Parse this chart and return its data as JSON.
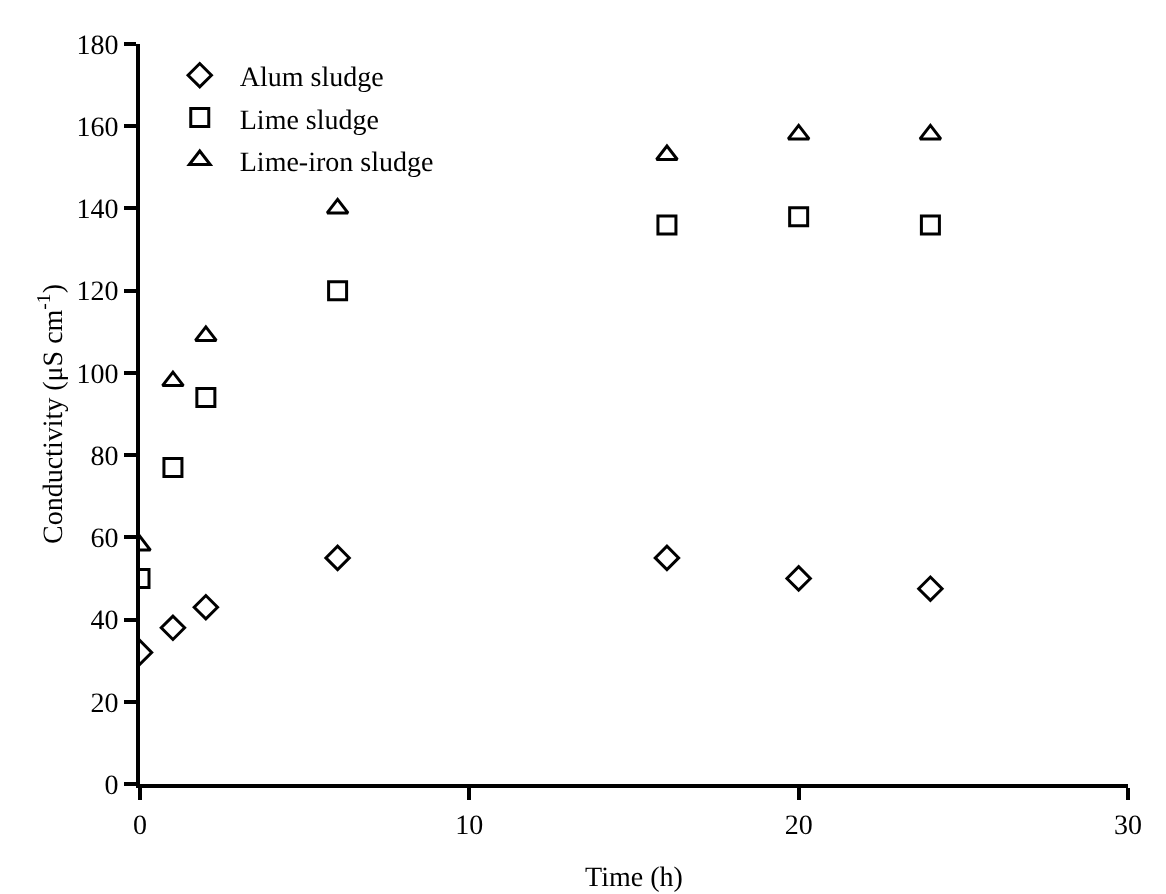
{
  "chart_data": {
    "type": "scatter",
    "xlabel": "Time (h)",
    "ylabel": "Conductivity (μS cm$^{-1}$)",
    "x": [
      0,
      1,
      2,
      6,
      16,
      20,
      24
    ],
    "series": [
      {
        "name": "Alum sludge",
        "color": "#000000",
        "marker": "diamond",
        "values": [
          32,
          38,
          43,
          55,
          55,
          50,
          47.5
        ]
      },
      {
        "name": "Lime sludge",
        "color": "#000000",
        "marker": "square",
        "values": [
          50,
          77,
          94,
          120,
          136,
          138,
          136
        ]
      },
      {
        "name": "Lime-iron sludge",
        "color": "#000000",
        "marker": "triangle",
        "values": [
          58,
          98,
          109,
          140,
          153,
          158,
          158
        ]
      }
    ],
    "xlim": [
      0,
      30
    ],
    "xticks": [
      0,
      10,
      20,
      30
    ],
    "ylim": [
      0,
      180
    ],
    "yticks": [
      0,
      20,
      40,
      60,
      80,
      100,
      120,
      140,
      160,
      180
    ],
    "grid": false,
    "legend": "top left"
  }
}
